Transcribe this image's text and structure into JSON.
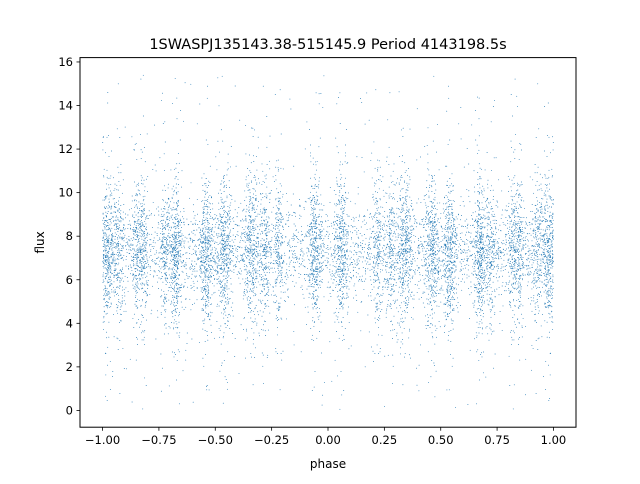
{
  "chart_data": {
    "type": "scatter",
    "title": "1SWASPJ135143.38-515145.9 Period 4143198.5s",
    "xlabel": "phase",
    "ylabel": "flux",
    "xlim": [
      -1.1,
      1.1
    ],
    "ylim": [
      -0.77,
      16.2
    ],
    "xticks": [
      -1.0,
      -0.75,
      -0.5,
      -0.25,
      0.0,
      0.25,
      0.5,
      0.75,
      1.0
    ],
    "xtick_labels": [
      "−1.00",
      "−0.75",
      "−0.50",
      "−0.25",
      "0.00",
      "0.25",
      "0.50",
      "0.75",
      "1.00"
    ],
    "yticks": [
      0,
      2,
      4,
      6,
      8,
      10,
      12,
      14,
      16
    ],
    "ytick_labels": [
      "0",
      "2",
      "4",
      "6",
      "8",
      "10",
      "12",
      "14",
      "16"
    ],
    "grid": false,
    "legend": "none",
    "marker_color": "#1f77b4",
    "x_range": [
      -1.0,
      1.0
    ],
    "median_flux": 7.3,
    "flux_range": [
      0.0,
      15.4
    ],
    "mirrored_about_zero": true,
    "dense_bands_phase": [
      -0.99,
      -0.93,
      -0.85,
      -0.72,
      -0.68,
      -0.55,
      -0.47,
      -0.35,
      -0.22,
      -0.05,
      0.07,
      0.28,
      0.33,
      0.45,
      0.53,
      0.67,
      0.82,
      0.97
    ]
  }
}
